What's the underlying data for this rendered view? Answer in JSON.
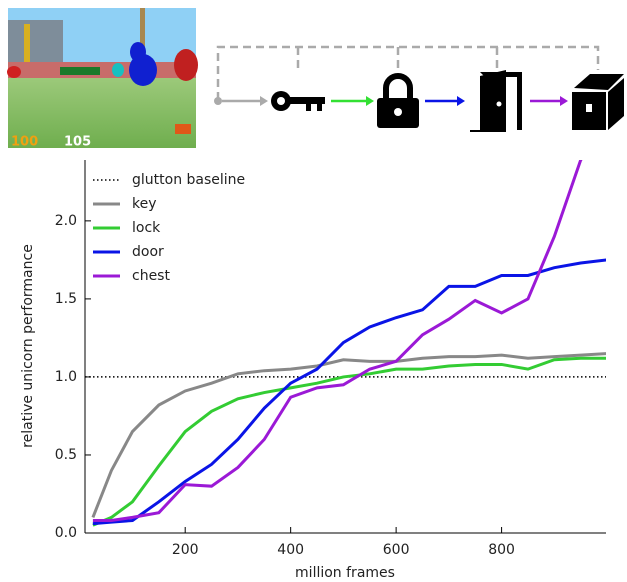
{
  "hud": {
    "health": "100",
    "armor": "105"
  },
  "chart_data": {
    "type": "line",
    "xlabel": "million frames",
    "ylabel": "relative unicorn performance",
    "x": [
      25,
      60,
      100,
      150,
      200,
      250,
      300,
      350,
      400,
      450,
      500,
      550,
      600,
      650,
      700,
      750,
      800,
      850,
      900,
      950,
      1000
    ],
    "baseline": {
      "name": "glutton baseline",
      "value": 1.0,
      "color": "#000000"
    },
    "series": [
      {
        "name": "key",
        "color": "#888888",
        "values": [
          0.1,
          0.4,
          0.65,
          0.82,
          0.91,
          0.96,
          1.02,
          1.04,
          1.05,
          1.07,
          1.11,
          1.1,
          1.1,
          1.12,
          1.13,
          1.13,
          1.14,
          1.12,
          1.13,
          1.14,
          1.15
        ]
      },
      {
        "name": "lock",
        "color": "#33cc33",
        "values": [
          0.05,
          0.1,
          0.2,
          0.43,
          0.65,
          0.78,
          0.86,
          0.9,
          0.93,
          0.96,
          1.0,
          1.02,
          1.05,
          1.05,
          1.07,
          1.08,
          1.08,
          1.05,
          1.11,
          1.12,
          1.12
        ]
      },
      {
        "name": "door",
        "color": "#0a14e6",
        "values": [
          0.06,
          0.07,
          0.08,
          0.2,
          0.33,
          0.44,
          0.6,
          0.8,
          0.96,
          1.05,
          1.22,
          1.32,
          1.38,
          1.43,
          1.58,
          1.58,
          1.65,
          1.65,
          1.7,
          1.73,
          1.75
        ]
      },
      {
        "name": "chest",
        "color": "#9b19d6",
        "values": [
          0.08,
          0.08,
          0.1,
          0.13,
          0.31,
          0.3,
          0.42,
          0.6,
          0.87,
          0.93,
          0.95,
          1.05,
          1.1,
          1.27,
          1.37,
          1.49,
          1.41,
          1.5,
          1.9,
          2.39,
          2.6
        ]
      }
    ],
    "xlim": [
      10,
      998
    ],
    "ylim": [
      0,
      2.39
    ],
    "xticks": [
      200,
      400,
      600,
      800
    ],
    "yticks": [
      {
        "value": 0,
        "label": "0.0"
      },
      {
        "value": 0.5,
        "label": "0.5"
      },
      {
        "value": 1,
        "label": "1.0"
      },
      {
        "value": 1.5,
        "label": "1.5"
      },
      {
        "value": 2,
        "label": "2.0"
      }
    ],
    "legend": "upper left"
  }
}
